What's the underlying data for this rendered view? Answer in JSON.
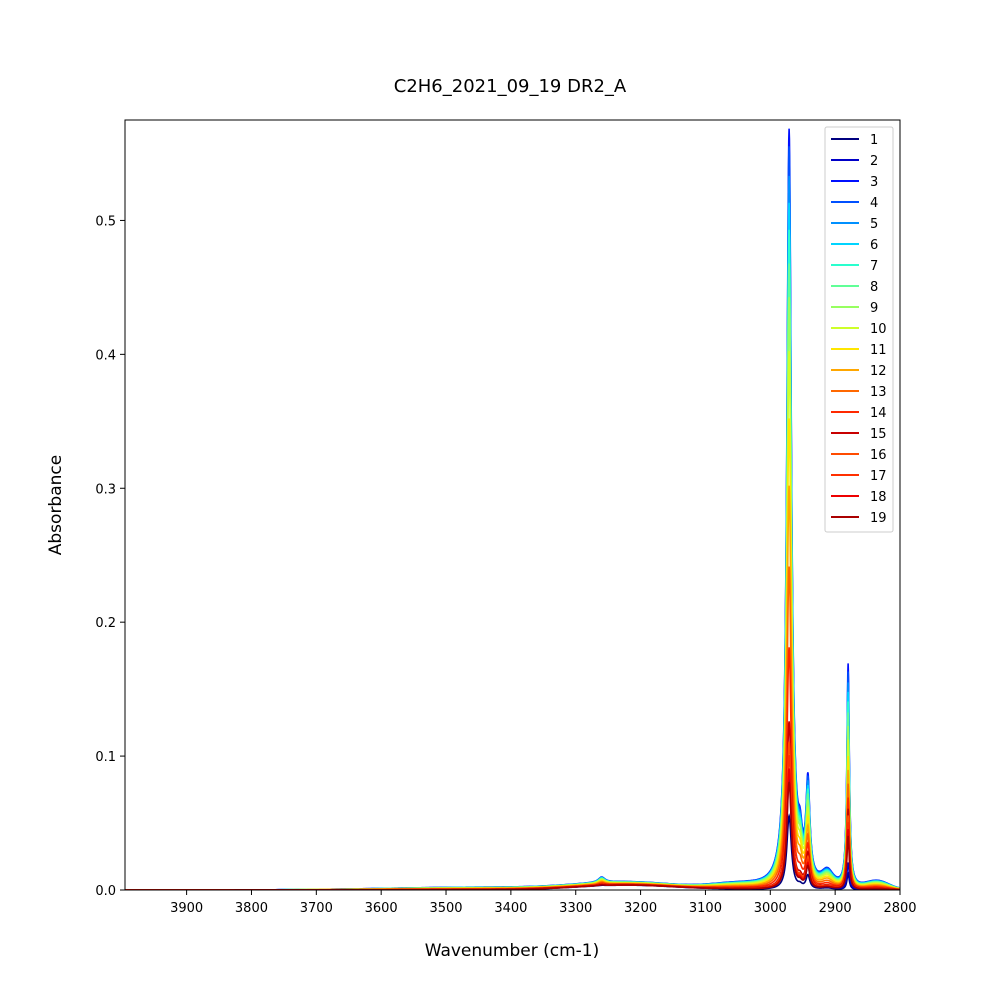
{
  "chart_data": {
    "type": "line",
    "title": "C2H6_2021_09_19 DR2_A",
    "xlabel": "Wavenumber (cm-1)",
    "ylabel": "Absorbance",
    "xlim": [
      3995,
      2800
    ],
    "x_reversed": true,
    "ylim": [
      0,
      0.575
    ],
    "x_ticks": [
      3900,
      3800,
      3700,
      3600,
      3500,
      3400,
      3300,
      3200,
      3100,
      3000,
      2900,
      2800
    ],
    "y_ticks": [
      0.0,
      0.1,
      0.2,
      0.3,
      0.4,
      0.5
    ],
    "grid": false,
    "legend_position": "top-right",
    "colormap": "jet",
    "series": [
      {
        "name": "1",
        "color": "#00007f",
        "peak_2970": 0.055,
        "peak_2940": 0.01,
        "peak_2880": 0.012
      },
      {
        "name": "2",
        "color": "#0000c8",
        "peak_2970": 0.084,
        "peak_2940": 0.016,
        "peak_2880": 0.02
      },
      {
        "name": "3",
        "color": "#0010ff",
        "peak_2970": 0.565,
        "peak_2940": 0.072,
        "peak_2880": 0.166
      },
      {
        "name": "4",
        "color": "#0050ff",
        "peak_2970": 0.552,
        "peak_2940": 0.07,
        "peak_2880": 0.16
      },
      {
        "name": "5",
        "color": "#0090ff",
        "peak_2970": 0.53,
        "peak_2940": 0.067,
        "peak_2880": 0.152
      },
      {
        "name": "6",
        "color": "#00d4ff",
        "peak_2970": 0.51,
        "peak_2940": 0.064,
        "peak_2880": 0.145
      },
      {
        "name": "7",
        "color": "#29ffce",
        "peak_2970": 0.49,
        "peak_2940": 0.062,
        "peak_2880": 0.138
      },
      {
        "name": "8",
        "color": "#60ff97",
        "peak_2970": 0.465,
        "peak_2940": 0.059,
        "peak_2880": 0.13
      },
      {
        "name": "9",
        "color": "#97ff60",
        "peak_2970": 0.44,
        "peak_2940": 0.055,
        "peak_2880": 0.12
      },
      {
        "name": "10",
        "color": "#ceff29",
        "peak_2970": 0.4,
        "peak_2940": 0.05,
        "peak_2880": 0.11
      },
      {
        "name": "11",
        "color": "#ffe600",
        "peak_2970": 0.35,
        "peak_2940": 0.045,
        "peak_2880": 0.098
      },
      {
        "name": "12",
        "color": "#ffa700",
        "peak_2970": 0.3,
        "peak_2940": 0.04,
        "peak_2880": 0.088
      },
      {
        "name": "13",
        "color": "#ff6800",
        "peak_2970": 0.24,
        "peak_2940": 0.035,
        "peak_2880": 0.078
      },
      {
        "name": "14",
        "color": "#ff2900",
        "peak_2970": 0.18,
        "peak_2940": 0.03,
        "peak_2880": 0.068
      },
      {
        "name": "15",
        "color": "#c80000",
        "peak_2970": 0.125,
        "peak_2940": 0.025,
        "peak_2880": 0.06
      },
      {
        "name": "16",
        "color": "#ff4b00",
        "peak_2970": 0.11,
        "peak_2940": 0.022,
        "peak_2880": 0.055
      },
      {
        "name": "17",
        "color": "#ff3000",
        "peak_2970": 0.1,
        "peak_2940": 0.02,
        "peak_2880": 0.05
      },
      {
        "name": "18",
        "color": "#ee0000",
        "peak_2970": 0.09,
        "peak_2940": 0.018,
        "peak_2880": 0.045
      },
      {
        "name": "19",
        "color": "#aa0000",
        "peak_2970": 0.08,
        "peak_2940": 0.016,
        "peak_2880": 0.04
      }
    ]
  }
}
